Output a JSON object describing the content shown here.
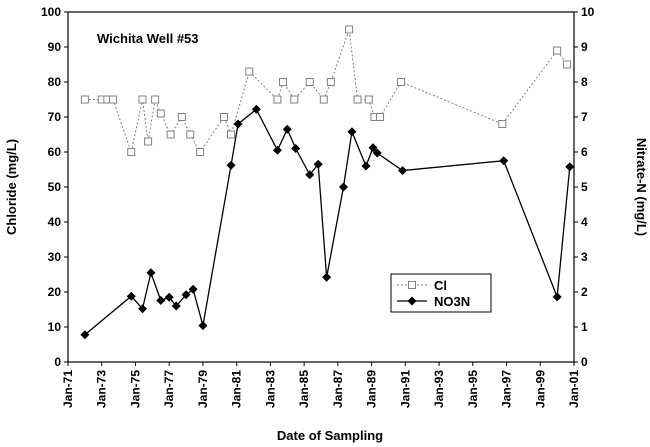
{
  "chart_data": {
    "type": "line",
    "title": "Wichita Well #53",
    "xlabel": "Date of Sampling",
    "ylabel": "Chloride (mg/L)",
    "y2label": "Nitrate-N (mg/L)",
    "xlim": [
      "1971-01-01",
      "2001-01-01"
    ],
    "ylim": [
      0,
      100
    ],
    "y2lim": [
      0,
      10
    ],
    "x_ticks": [
      "Jan-71",
      "Jan-73",
      "Jan-75",
      "Jan-77",
      "Jan-79",
      "Jan-81",
      "Jan-83",
      "Jan-85",
      "Jan-87",
      "Jan-89",
      "Jan-91",
      "Jan-93",
      "Jan-95",
      "Jan-97",
      "Jan-99",
      "Jan-01"
    ],
    "y_ticks": [
      0,
      10,
      20,
      30,
      40,
      50,
      60,
      70,
      80,
      90,
      100
    ],
    "y2_ticks": [
      0,
      1,
      2,
      3,
      4,
      5,
      6,
      7,
      8,
      9,
      10
    ],
    "legend_position": "lower-right",
    "series": [
      {
        "name": "Cl",
        "axis": "left",
        "color": "#808080",
        "marker": "open-square",
        "line": "dotted",
        "x": [
          "1972-01",
          "1973-01",
          "1973-05",
          "1973-09",
          "1974-10",
          "1975-06",
          "1975-10",
          "1976-03",
          "1976-07",
          "1977-02",
          "1977-10",
          "1978-04",
          "1978-11",
          "1980-04",
          "1980-09",
          "1981-10",
          "1983-06",
          "1983-10",
          "1984-06",
          "1985-05",
          "1986-03",
          "1986-08",
          "1987-09",
          "1988-03",
          "1988-11",
          "1989-03",
          "1989-07",
          "1990-10",
          "1996-10",
          "2000-01",
          "2000-08"
        ],
        "values": [
          75,
          75,
          75,
          75,
          60,
          75,
          63,
          75,
          71,
          65,
          70,
          65,
          60,
          70,
          65,
          83,
          75,
          80,
          75,
          80,
          75,
          80,
          95,
          75,
          75,
          70,
          70,
          80,
          68,
          89,
          85
        ]
      },
      {
        "name": "NO3N",
        "axis": "right",
        "color": "#000000",
        "marker": "filled-diamond",
        "line": "solid",
        "x": [
          "1972-01",
          "1974-10",
          "1975-06",
          "1975-12",
          "1976-07",
          "1977-01",
          "1977-06",
          "1978-01",
          "1978-06",
          "1979-01",
          "1980-09",
          "1981-02",
          "1982-03",
          "1983-06",
          "1984-01",
          "1984-07",
          "1985-05",
          "1985-11",
          "1986-05",
          "1987-05",
          "1987-11",
          "1988-09",
          "1989-02",
          "1989-05",
          "1990-11",
          "1996-11",
          "2000-01",
          "2000-10"
        ],
        "values": [
          0.78,
          1.88,
          1.52,
          2.55,
          1.76,
          1.85,
          1.6,
          1.92,
          2.08,
          1.04,
          5.62,
          6.8,
          7.22,
          6.05,
          6.65,
          6.1,
          5.35,
          5.65,
          2.42,
          5.0,
          6.58,
          5.6,
          6.12,
          5.97,
          5.47,
          5.75,
          1.86,
          5.58
        ]
      }
    ]
  }
}
